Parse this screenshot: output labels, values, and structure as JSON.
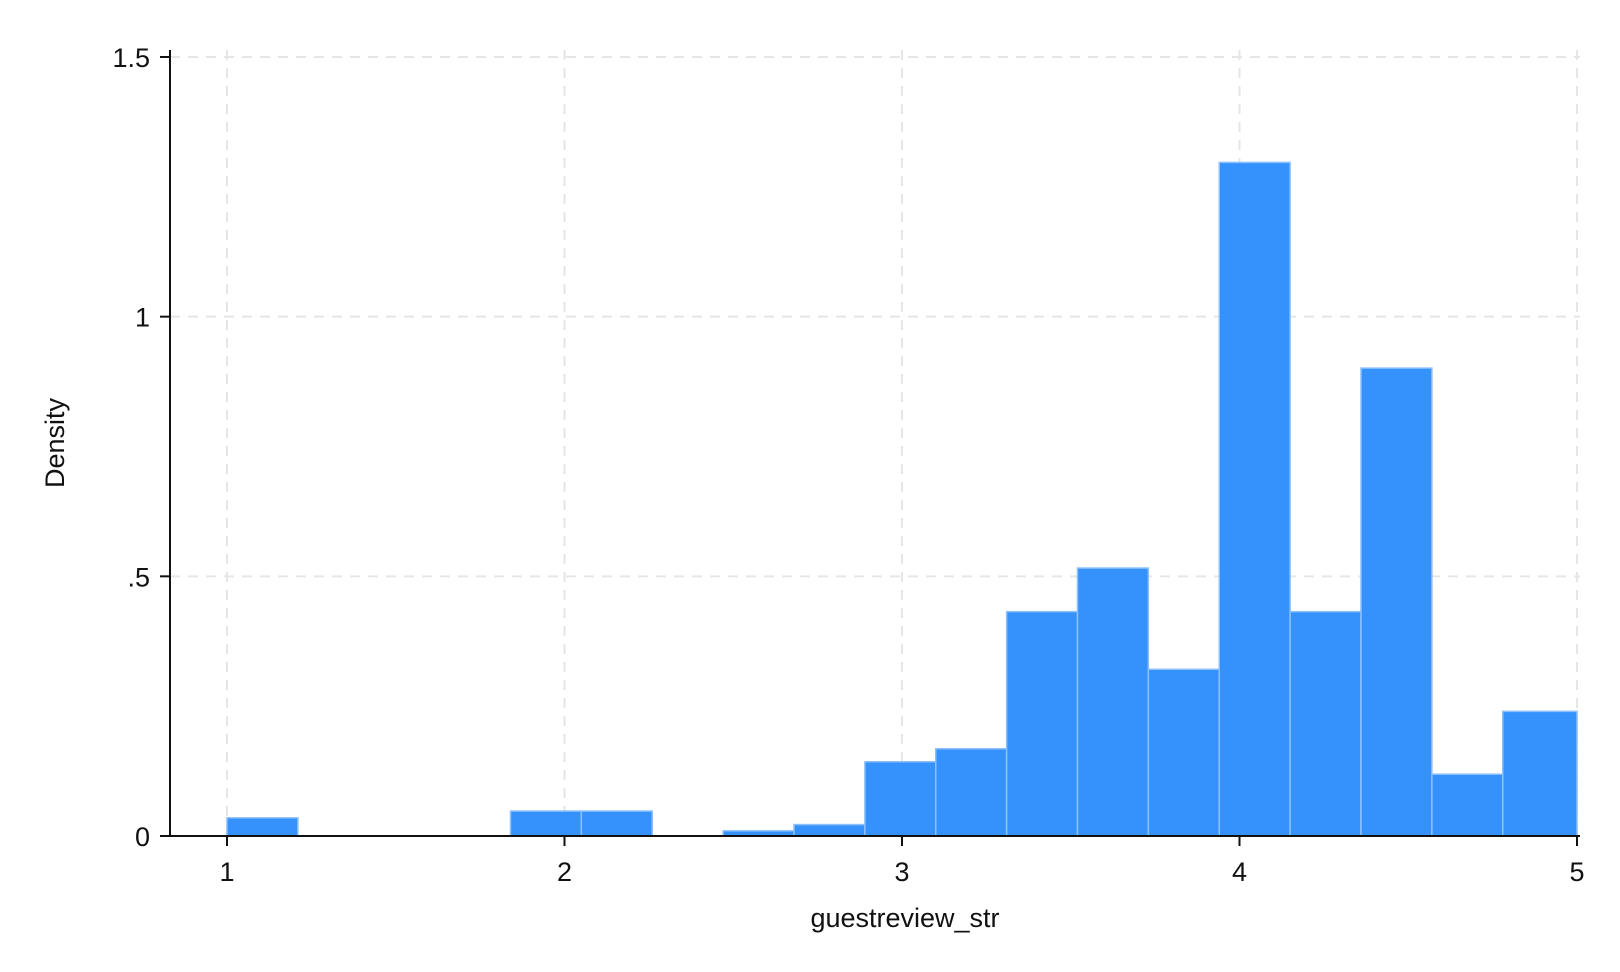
{
  "chart_data": {
    "type": "bar",
    "title": "",
    "xlabel": "guestreview_str",
    "ylabel": "Density",
    "xlim": [
      1,
      5
    ],
    "ylim": [
      0,
      1.5
    ],
    "x_ticks": [
      {
        "value": 1,
        "label": "1"
      },
      {
        "value": 2,
        "label": "2"
      },
      {
        "value": 3,
        "label": "3"
      },
      {
        "value": 4,
        "label": "4"
      },
      {
        "value": 5,
        "label": "5"
      }
    ],
    "y_ticks": [
      {
        "value": 0,
        "label": "0"
      },
      {
        "value": 0.5,
        "label": ".5"
      },
      {
        "value": 1,
        "label": "1"
      },
      {
        "value": 1.5,
        "label": "1.5"
      }
    ],
    "grid": true,
    "bin_width": 0.21,
    "bins": [
      {
        "start": 1.0,
        "end": 1.21,
        "density": 0.035
      },
      {
        "start": 1.84,
        "end": 2.05,
        "density": 0.048
      },
      {
        "start": 2.05,
        "end": 2.26,
        "density": 0.048
      },
      {
        "start": 2.47,
        "end": 2.68,
        "density": 0.01
      },
      {
        "start": 2.68,
        "end": 2.89,
        "density": 0.022
      },
      {
        "start": 2.89,
        "end": 3.1,
        "density": 0.143
      },
      {
        "start": 3.1,
        "end": 3.31,
        "density": 0.168
      },
      {
        "start": 3.31,
        "end": 3.52,
        "density": 0.432
      },
      {
        "start": 3.52,
        "end": 3.73,
        "density": 0.516
      },
      {
        "start": 3.73,
        "end": 3.94,
        "density": 0.321
      },
      {
        "start": 3.94,
        "end": 4.15,
        "density": 1.297
      },
      {
        "start": 4.15,
        "end": 4.36,
        "density": 0.432
      },
      {
        "start": 4.36,
        "end": 4.57,
        "density": 0.901
      },
      {
        "start": 4.57,
        "end": 4.78,
        "density": 0.119
      },
      {
        "start": 4.78,
        "end": 5.0,
        "density": 0.24
      }
    ],
    "colors": {
      "bar_fill": "#3592fc",
      "bar_edge": "#8cc0fd",
      "grid": "#e6e6e6",
      "axis": "#111111"
    }
  }
}
